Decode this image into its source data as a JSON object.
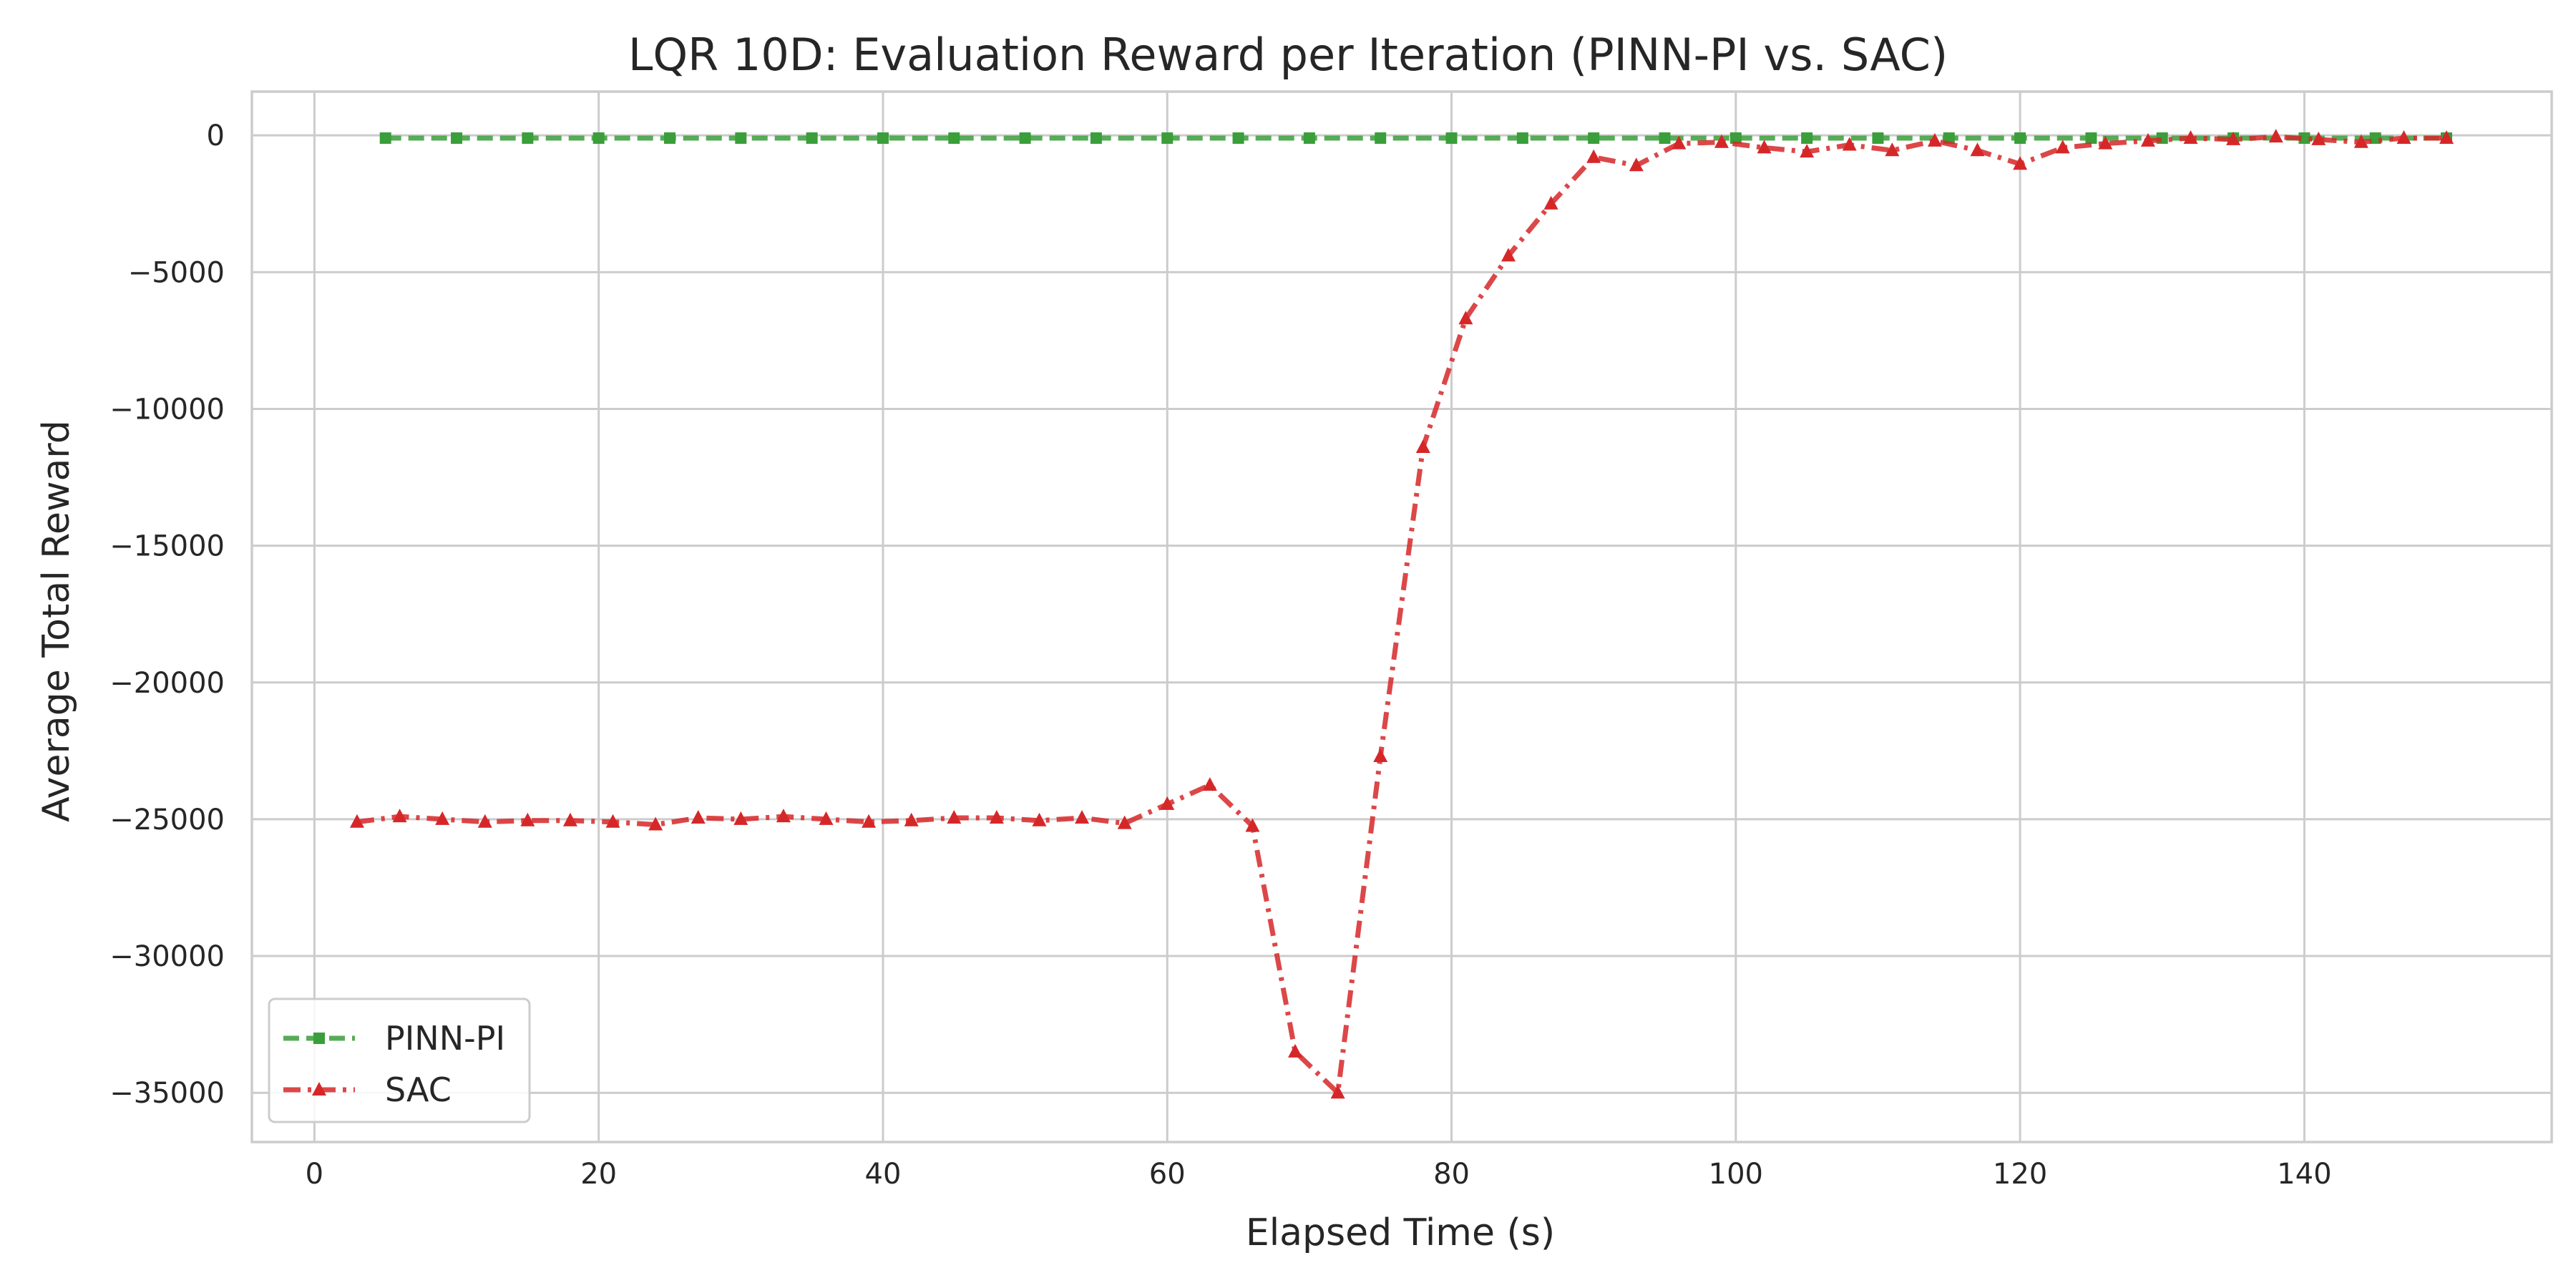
{
  "chart_data": {
    "type": "line",
    "title": "LQR 10D: Evaluation Reward per Iteration (PINN-PI vs. SAC)",
    "xlabel": "Elapsed Time (s)",
    "ylabel": "Average Total Reward",
    "xlim": [
      -4.4,
      157.4
    ],
    "ylim": [
      -36800,
      1600
    ],
    "xticks": [
      0,
      20,
      40,
      60,
      80,
      100,
      120,
      140
    ],
    "yticks": [
      0,
      -5000,
      -10000,
      -15000,
      -20000,
      -25000,
      -30000,
      -35000
    ],
    "xtick_labels": [
      "0",
      "20",
      "40",
      "60",
      "80",
      "100",
      "120",
      "140"
    ],
    "ytick_labels": [
      "0",
      "−5000",
      "−10000",
      "−15000",
      "−20000",
      "−25000",
      "−30000",
      "−35000"
    ],
    "grid": true,
    "legend_position": "lower-left",
    "series": [
      {
        "name": "PINN-PI",
        "color": "#3a9e3a",
        "marker": "square",
        "linestyle": "dashed",
        "x": [
          5,
          10,
          15,
          20,
          25,
          30,
          35,
          40,
          45,
          50,
          55,
          60,
          65,
          70,
          75,
          80,
          85,
          90,
          95,
          100,
          105,
          110,
          115,
          120,
          125,
          130,
          135,
          140,
          145,
          150
        ],
        "y": [
          -100,
          -100,
          -100,
          -100,
          -100,
          -100,
          -100,
          -100,
          -100,
          -100,
          -100,
          -100,
          -100,
          -100,
          -100,
          -100,
          -100,
          -100,
          -100,
          -100,
          -100,
          -100,
          -100,
          -100,
          -100,
          -100,
          -100,
          -100,
          -100,
          -100
        ]
      },
      {
        "name": "SAC",
        "color": "#d62728",
        "marker": "triangle",
        "linestyle": "dashdot",
        "x": [
          3,
          6,
          9,
          12,
          15,
          18,
          21,
          24,
          27,
          30,
          33,
          36,
          39,
          42,
          45,
          48,
          51,
          54,
          57,
          60,
          63,
          66,
          69,
          72,
          75,
          78,
          81,
          84,
          87,
          90,
          93,
          96,
          99,
          102,
          105,
          108,
          111,
          114,
          117,
          120,
          123,
          126,
          129,
          132,
          135,
          138,
          141,
          144,
          147,
          150
        ],
        "y": [
          -25100,
          -24900,
          -25000,
          -25100,
          -25050,
          -25050,
          -25100,
          -25200,
          -24950,
          -25000,
          -24900,
          -25000,
          -25100,
          -25050,
          -24950,
          -24950,
          -25050,
          -24950,
          -25150,
          -24450,
          -23750,
          -25250,
          -33500,
          -35000,
          -22700,
          -11400,
          -6700,
          -4400,
          -2500,
          -800,
          -1100,
          -300,
          -250,
          -450,
          -600,
          -350,
          -550,
          -200,
          -550,
          -1050,
          -450,
          -300,
          -200,
          -100,
          -150,
          -50,
          -150,
          -250,
          -100,
          -100
        ]
      }
    ]
  }
}
